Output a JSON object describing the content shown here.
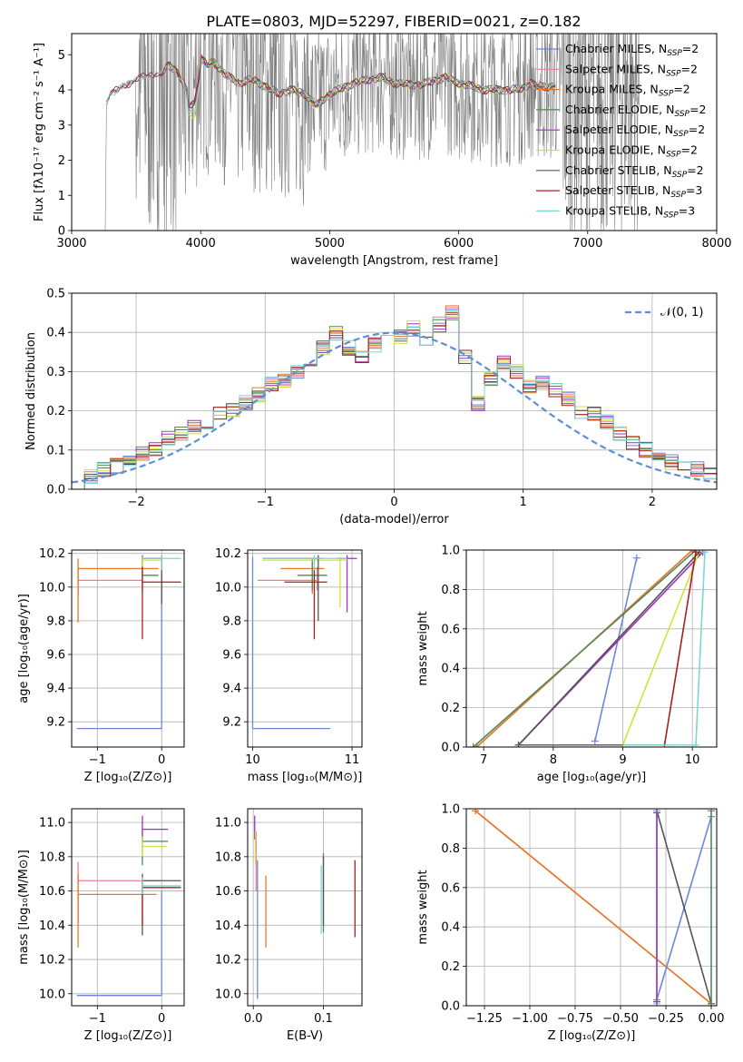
{
  "title": "PLATE=0803, MJD=52297, FIBERID=0021, z=0.182",
  "colors": {
    "data": "#808080",
    "Chabrier MILES": "#6a88d6",
    "Salpeter MILES": "#ef7e8f",
    "Kroupa MILES": "#e57a2a",
    "Chabrier ELODIE": "#4f8a55",
    "Salpeter ELODIE": "#a32fc4",
    "Kroupa ELODIE": "#cfe23a",
    "Chabrier STELIB": "#555555",
    "Salpeter STELIB": "#a91f1f",
    "Kroupa STELIB": "#7ed6d3",
    "normal": "#5b8fd9"
  },
  "chart_data": [
    {
      "type": "line",
      "panel": "spectrum",
      "xlabel": "wavelength [Angstrom, rest frame]",
      "ylabel": "Flux [fλ10⁻¹⁷ erg cm⁻² s⁻¹ A⁻¹]",
      "xlim": [
        3000,
        8000
      ],
      "ylim": [
        0,
        5.6
      ],
      "xticks": [
        "3000",
        "4000",
        "5000",
        "6000",
        "7000",
        "8000"
      ],
      "yticks": [
        "0",
        "1",
        "2",
        "3",
        "4",
        "5"
      ],
      "legend": "top-right",
      "legend_entries": [
        {
          "name": "Chabrier MILES",
          "sub": "SSP",
          "n": "=2"
        },
        {
          "name": "Salpeter MILES",
          "sub": "SSP",
          "n": "=2"
        },
        {
          "name": "Kroupa MILES",
          "sub": "SSP",
          "n": "=2"
        },
        {
          "name": "Chabrier ELODIE",
          "sub": "SSP",
          "n": "=2"
        },
        {
          "name": "Salpeter ELODIE",
          "sub": "SSP",
          "n": "=2"
        },
        {
          "name": "Kroupa ELODIE",
          "sub": "SSP",
          "n": "=2"
        },
        {
          "name": "Chabrier STELIB",
          "sub": "SSP",
          "n": "=2"
        },
        {
          "name": "Salpeter STELIB",
          "sub": "SSP",
          "n": "=3"
        },
        {
          "name": "Kroupa STELIB",
          "sub": "SSP",
          "n": "=3"
        }
      ],
      "model_x": [
        3270,
        3300,
        3400,
        3500,
        3550,
        3650,
        3700,
        3750,
        3800,
        3850,
        3900,
        3950,
        4000,
        4050,
        4100,
        4200,
        4300,
        4400,
        4500,
        4600,
        4700,
        4800,
        4860,
        4900,
        5000,
        5100,
        5200,
        5300,
        5400,
        5500,
        5600,
        5700,
        5800,
        5900,
        6000,
        6100,
        6200,
        6300,
        6400,
        6500,
        6560,
        6600,
        6700,
        6750
      ],
      "model_y": [
        3.6,
        3.85,
        4.15,
        4.25,
        4.35,
        4.5,
        4.45,
        4.7,
        4.6,
        4.3,
        3.9,
        3.9,
        4.9,
        4.7,
        4.8,
        4.4,
        4.2,
        4.3,
        4.1,
        3.9,
        4.0,
        3.9,
        3.7,
        3.55,
        3.9,
        4.05,
        4.2,
        4.3,
        4.35,
        4.2,
        4.15,
        4.15,
        4.25,
        4.35,
        4.2,
        4.1,
        4.0,
        4.0,
        4.0,
        4.05,
        4.2,
        4.1,
        4.1,
        4.1
      ]
    },
    {
      "type": "line",
      "panel": "residuals",
      "xlabel": "(data-model)/error",
      "ylabel": "Normed distribution",
      "xlim": [
        -2.5,
        2.5
      ],
      "ylim": [
        0,
        0.5
      ],
      "xticks": [
        "−2",
        "−1",
        "0",
        "1",
        "2"
      ],
      "yticks": [
        "0.0",
        "0.1",
        "0.2",
        "0.3",
        "0.4",
        "0.5"
      ],
      "legend_label": "𝒩(0, 1)",
      "hist_centers": [
        -2.45,
        -2.35,
        -2.25,
        -2.15,
        -2.05,
        -1.95,
        -1.85,
        -1.75,
        -1.65,
        -1.55,
        -1.45,
        -1.35,
        -1.25,
        -1.15,
        -1.05,
        -0.95,
        -0.85,
        -0.75,
        -0.65,
        -0.55,
        -0.45,
        -0.35,
        -0.25,
        -0.15,
        -0.05,
        0.05,
        0.15,
        0.25,
        0.35,
        0.45,
        0.55,
        0.65,
        0.75,
        0.85,
        0.95,
        1.05,
        1.15,
        1.25,
        1.35,
        1.45,
        1.55,
        1.65,
        1.75,
        1.85,
        1.95,
        2.05,
        2.15,
        2.25,
        2.35,
        2.45
      ],
      "hist_base": [
        0.02,
        0.03,
        0.05,
        0.06,
        0.07,
        0.09,
        0.1,
        0.13,
        0.14,
        0.16,
        0.17,
        0.19,
        0.2,
        0.22,
        0.24,
        0.27,
        0.28,
        0.3,
        0.33,
        0.36,
        0.4,
        0.36,
        0.34,
        0.37,
        0.4,
        0.39,
        0.41,
        0.38,
        0.42,
        0.45,
        0.34,
        0.22,
        0.28,
        0.32,
        0.3,
        0.26,
        0.27,
        0.25,
        0.23,
        0.2,
        0.19,
        0.17,
        0.14,
        0.12,
        0.1,
        0.08,
        0.07,
        0.06,
        0.05,
        0.04
      ]
    },
    {
      "type": "scatter",
      "panel": "age-vs-Z",
      "xlabel": "Z [log₁₀(Z/Z⊙)]",
      "ylabel": "age  [log₁₀(age/yr)]",
      "xlim": [
        -1.4,
        0.35
      ],
      "ylim": [
        9.05,
        10.22
      ],
      "xticks": [
        "−1",
        "0"
      ],
      "yticks": [
        "9.2",
        "9.4",
        "9.6",
        "9.8",
        "10.0",
        "10.2"
      ]
    },
    {
      "type": "scatter",
      "panel": "age-vs-mass",
      "xlabel": "mass [log₁₀(M/M⊙)]",
      "xlim": [
        9.95,
        11.1
      ],
      "ylim": [
        9.05,
        10.22
      ],
      "xticks": [
        "10",
        "11"
      ],
      "yticks": [
        "9.2",
        "9.4",
        "9.6",
        "9.8",
        "10.0",
        "10.2"
      ]
    },
    {
      "type": "line",
      "panel": "mass-weight-vs-age",
      "xlabel": "age  [log₁₀(age/yr)]",
      "ylabel": "mass weight",
      "xlim": [
        6.75,
        10.35
      ],
      "ylim": [
        0,
        1
      ],
      "xticks": [
        "7",
        "8",
        "9",
        "10"
      ],
      "yticks": [
        "0.0",
        "0.2",
        "0.4",
        "0.6",
        "0.8",
        "1.0"
      ]
    },
    {
      "type": "scatter",
      "panel": "mass-vs-Z",
      "xlabel": "Z [log₁₀(Z/Z⊙)]",
      "ylabel": "mass [log₁₀(M/M⊙)]",
      "xlim": [
        -1.4,
        0.35
      ],
      "ylim": [
        9.93,
        11.08
      ],
      "xticks": [
        "−1",
        "0"
      ],
      "yticks": [
        "10.0",
        "10.2",
        "10.4",
        "10.6",
        "10.8",
        "11.0"
      ]
    },
    {
      "type": "scatter",
      "panel": "mass-vs-EBV",
      "xlabel": "E(B-V)",
      "xlim": [
        -0.008,
        0.155
      ],
      "ylim": [
        9.93,
        11.08
      ],
      "xticks": [
        "0.0",
        "0.1"
      ],
      "yticks": [
        "10.0",
        "10.2",
        "10.4",
        "10.6",
        "10.8",
        "11.0"
      ]
    },
    {
      "type": "line",
      "panel": "mass-weight-vs-Z",
      "xlabel": "Z [log₁₀(Z/Z⊙)]",
      "ylabel": "mass weight",
      "xlim": [
        -1.35,
        0.03
      ],
      "ylim": [
        0,
        1
      ],
      "xticks": [
        "−1.25",
        "−1.00",
        "−0.75",
        "−0.50",
        "−0.25",
        "0.00"
      ],
      "yticks": [
        "0.0",
        "0.2",
        "0.4",
        "0.6",
        "0.8",
        "1.0"
      ]
    }
  ]
}
